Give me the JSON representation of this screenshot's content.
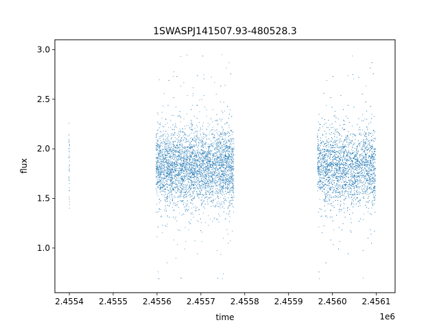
{
  "chart_data": {
    "type": "scatter",
    "title": "1SWASPJ141507.93-480528.3",
    "xlabel": "time",
    "ylabel": "flux",
    "x_offset_label": "1e6",
    "xlim": [
      2455367,
      2456143
    ],
    "ylim": [
      0.55,
      3.1
    ],
    "x_ticks": [
      2455400,
      2455500,
      2455600,
      2455700,
      2455800,
      2455900,
      2456000,
      2456100
    ],
    "x_tick_labels": [
      "2.4554",
      "2.4555",
      "2.4556",
      "2.4557",
      "2.4558",
      "2.4559",
      "2.4560",
      "2.4561"
    ],
    "y_ticks": [
      1.0,
      1.5,
      2.0,
      2.5,
      3.0
    ],
    "y_tick_labels": [
      "1.0",
      "1.5",
      "2.0",
      "2.5",
      "3.0"
    ],
    "grid": false,
    "marker_color": "#1f77b4",
    "series": [
      {
        "observing_seasons": [
          {
            "t_start": 2455399,
            "t_end": 2455401,
            "flux_median": 1.85,
            "flux_typical_low": 1.35,
            "flux_typical_high": 2.25,
            "flux_min": 1.3,
            "flux_max": 2.56
          },
          {
            "t_start": 2455598,
            "t_end": 2455776,
            "flux_median": 1.82,
            "flux_typical_low": 1.45,
            "flux_typical_high": 2.2,
            "flux_min": 0.67,
            "flux_max": 3.0
          },
          {
            "t_start": 2455966,
            "t_end": 2456099,
            "flux_median": 1.82,
            "flux_typical_low": 1.45,
            "flux_typical_high": 2.2,
            "flux_min": 0.64,
            "flux_max": 3.0
          }
        ]
      }
    ]
  }
}
